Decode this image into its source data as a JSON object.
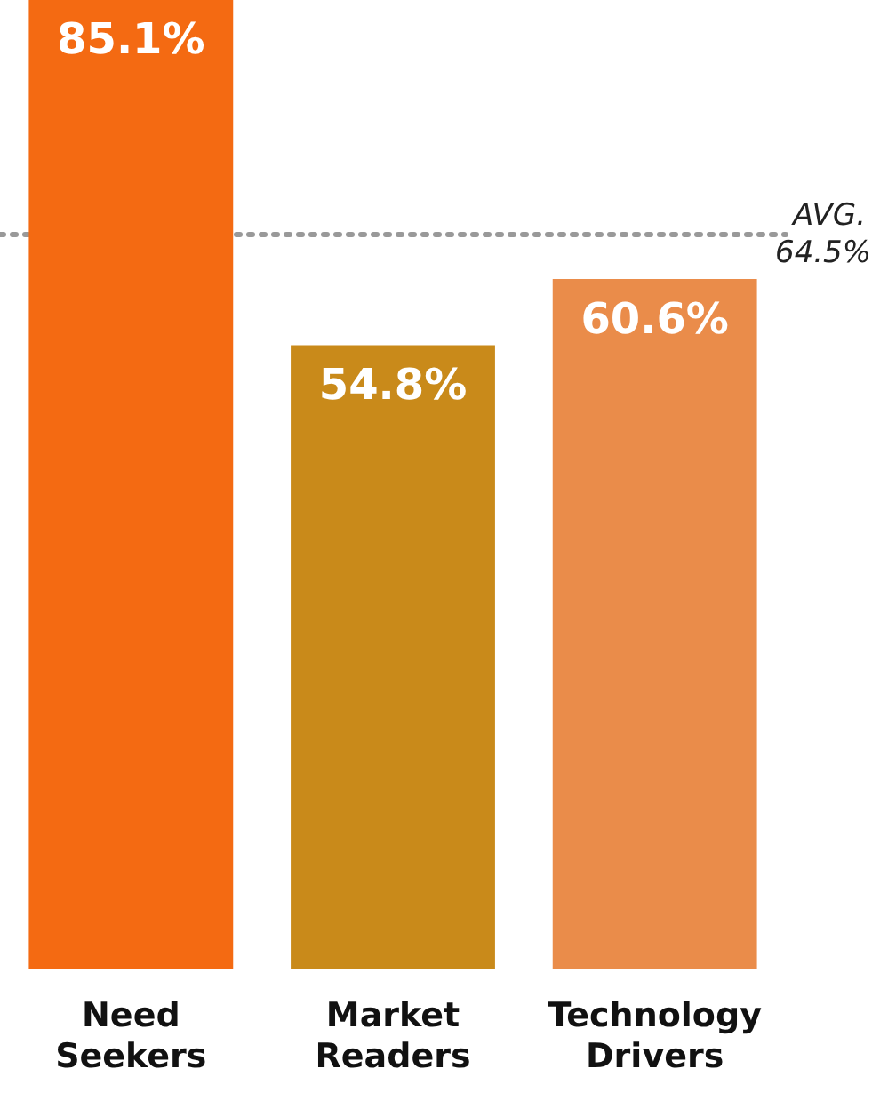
{
  "chart_data": {
    "type": "bar",
    "categories": [
      "Need Seekers",
      "Market Readers",
      "Technology Drivers"
    ],
    "values": [
      85.1,
      54.8,
      60.6
    ],
    "colors": [
      "#f46a12",
      "#c98a1a",
      "#ea8c4a"
    ],
    "value_labels": [
      "85.1%",
      "54.8%",
      "60.6%"
    ],
    "ref_lines": [
      {
        "axis": "y",
        "value": 64.5,
        "label": "AVG. 64.5%",
        "color": "#999999",
        "line_style": "dotted"
      }
    ],
    "grid": false,
    "legend": false
  }
}
